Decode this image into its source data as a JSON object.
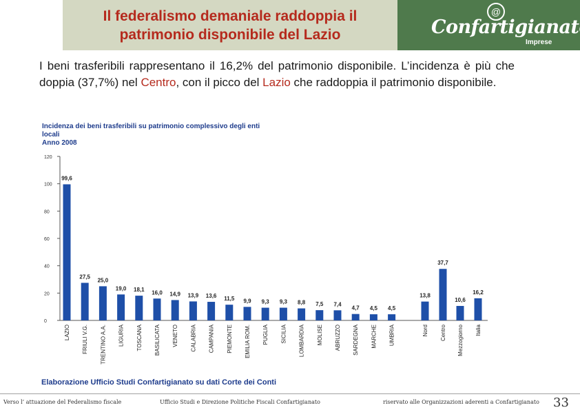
{
  "header": {
    "title": "Il federalismo demaniale raddoppia il\npatrimonio disponibile del Lazio",
    "logo_at": "@",
    "logo_name": "Confartigianato",
    "logo_sub": "Imprese"
  },
  "intro": {
    "part1": "I beni trasferibili rappresentano il 16,2% del patrimonio disponibile. L’incidenza è più che doppia (37,7%) nel ",
    "highlight1": "Centro",
    "part2": ", con il picco del ",
    "highlight2": "Lazio",
    "part3": " che raddoppia il patrimonio disponibile."
  },
  "chart_data": {
    "type": "bar",
    "title": "Incidenza dei beni trasferibili su patrimonio complessivo degli enti\nlocali\nAnno 2008",
    "categories": [
      "LAZIO",
      "FRIULI V.G.",
      "TRENTINO A.A.",
      "LIGURIA",
      "TOSCANA",
      "BASILICATA",
      "VENETO",
      "CALABRIA",
      "CAMPANIA",
      "PIEMONTE",
      "EMILIA ROM.",
      "PUGLIA",
      "SICILIA",
      "LOMBARDIA",
      "MOLISE",
      "ABRUZZO",
      "SARDEGNA",
      "MARCHE",
      "UMBRIA",
      "Nord",
      "Centro",
      "Mezzogiorno",
      "Italia"
    ],
    "values": [
      99.6,
      27.5,
      25.0,
      19.0,
      18.1,
      16.0,
      14.9,
      13.9,
      13.6,
      11.5,
      9.9,
      9.3,
      9.3,
      8.8,
      7.5,
      7.4,
      4.7,
      4.5,
      4.5,
      13.8,
      37.7,
      10.6,
      16.2
    ],
    "value_labels": [
      "99,6",
      "27,5",
      "25,0",
      "19,0",
      "18,1",
      "16,0",
      "14,9",
      "13,9",
      "13,6",
      "11,5",
      "9,9",
      "9,3",
      "9,3",
      "8,8",
      "7,5",
      "7,4",
      "4,7",
      "4,5",
      "4,5",
      "13,8",
      "37,7",
      "10,6",
      "16,2"
    ],
    "y_ticks": [
      "0",
      "20",
      "40",
      "60",
      "80",
      "100",
      "120"
    ],
    "ylim": [
      0,
      120
    ],
    "bar_color": "#1e4fa8"
  },
  "source": "Elaborazione Ufficio Studi Confartigianato su dati Corte dei Conti",
  "footer": {
    "left": "Verso l’ attuazione del Federalismo fiscale",
    "center": "Ufficio Studi e Direzione Politiche Fiscali Confartigianato",
    "right": "riservato alle Organizzazioni aderenti a Confartigianato",
    "page": "33"
  }
}
